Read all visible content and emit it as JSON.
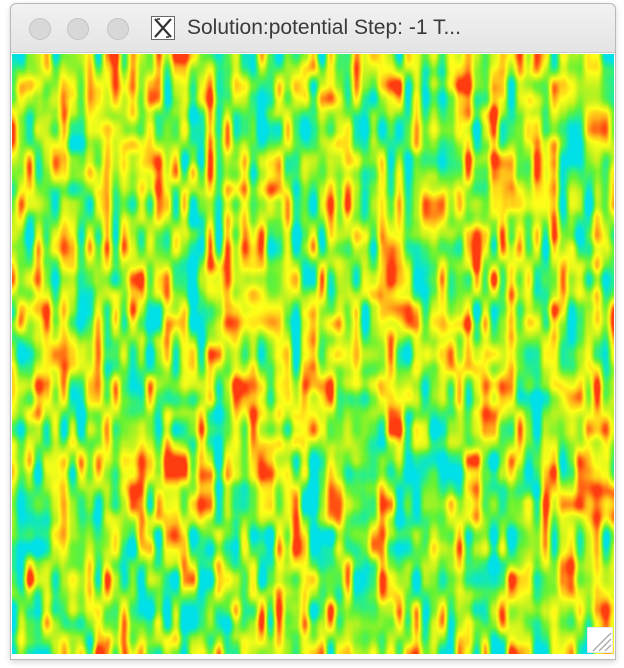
{
  "window": {
    "title": "Solution:potential Step: -1 T...",
    "app_icon": "x11-icon",
    "buttons": [
      {
        "name": "close-button",
        "color": "#d8d8d8"
      },
      {
        "name": "minimize-button",
        "color": "#d8d8d8"
      },
      {
        "name": "zoom-button",
        "color": "#d8d8d8"
      }
    ]
  },
  "plot": {
    "field": "potential",
    "colormap": [
      "#00e0e8",
      "#24ee90",
      "#66f233",
      "#c4f21e",
      "#ffff18",
      "#ffb31a",
      "#ff3b10"
    ]
  },
  "resize_grip": {
    "icon": "resize-grip-icon"
  }
}
